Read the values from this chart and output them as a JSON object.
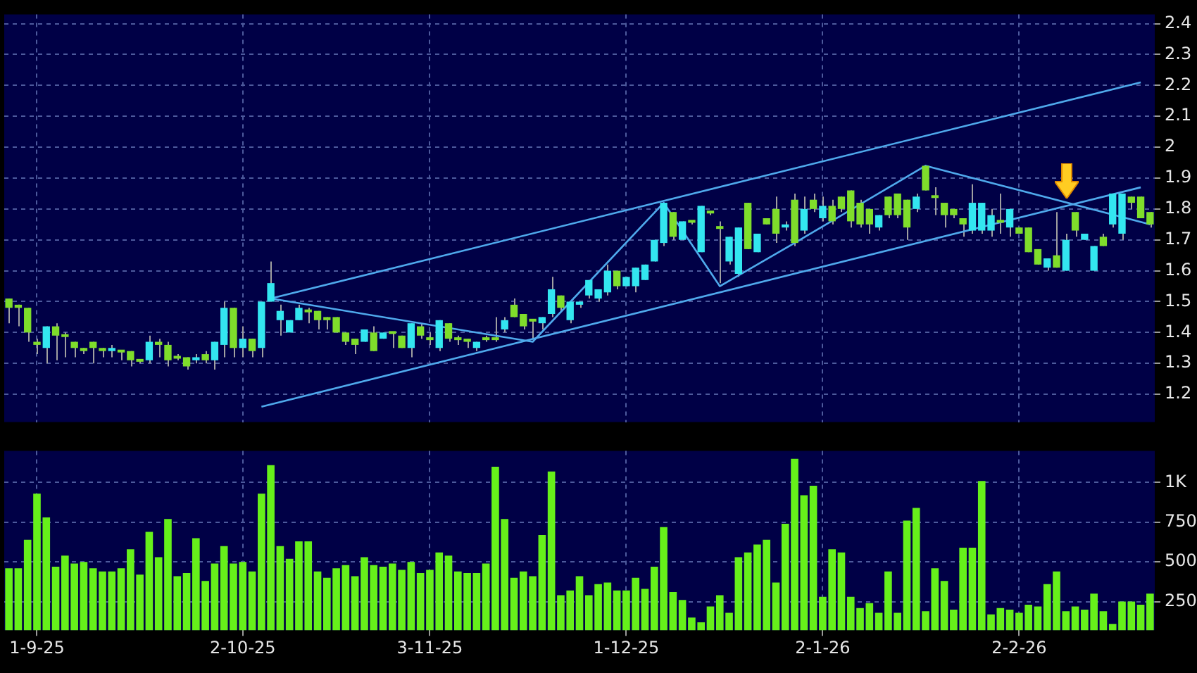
{
  "chart_data": [
    {
      "type": "candlestick",
      "categories": [
        null,
        null,
        null,
        null,
        null,
        null,
        null,
        null,
        null,
        null,
        null,
        null,
        null,
        null,
        null,
        null,
        null,
        null,
        null,
        null,
        null,
        null,
        null,
        null,
        null,
        null,
        null,
        null,
        null,
        null,
        null,
        null,
        null,
        null,
        null,
        null,
        null,
        null,
        null,
        null,
        null,
        null,
        null,
        null,
        null,
        null,
        null,
        null,
        null,
        null,
        null,
        null,
        null,
        null,
        null,
        null,
        null,
        null,
        null,
        null,
        null,
        null,
        null,
        null,
        null,
        null,
        null,
        null,
        null,
        null,
        null,
        null,
        null,
        null,
        null,
        null,
        null,
        null,
        null,
        null,
        null,
        null,
        null,
        null,
        null,
        null,
        null,
        null,
        null,
        null,
        null,
        null,
        null,
        null,
        null,
        null,
        null,
        null,
        null,
        null,
        null,
        null,
        null,
        null,
        null,
        null,
        null,
        null,
        null,
        null,
        null,
        null,
        null,
        null,
        null,
        null,
        null,
        null,
        null,
        null,
        null,
        null,
        null
      ],
      "ohlc": [
        [
          1.51,
          1.51,
          1.43,
          1.48
        ],
        [
          1.49,
          1.49,
          1.42,
          1.48
        ],
        [
          1.48,
          1.48,
          1.37,
          1.4
        ],
        [
          1.37,
          1.38,
          1.33,
          1.36
        ],
        [
          1.35,
          1.42,
          1.3,
          1.42
        ],
        [
          1.42,
          1.43,
          1.31,
          1.39
        ],
        [
          1.39,
          1.4,
          1.32,
          1.39
        ],
        [
          1.37,
          1.37,
          1.32,
          1.35
        ],
        [
          1.35,
          1.35,
          1.33,
          1.34
        ],
        [
          1.37,
          1.37,
          1.3,
          1.35
        ],
        [
          1.35,
          1.35,
          1.32,
          1.34
        ],
        [
          1.34,
          1.36,
          1.32,
          1.35
        ],
        [
          1.34,
          1.34,
          1.31,
          1.34
        ],
        [
          1.34,
          1.34,
          1.29,
          1.31
        ],
        [
          1.31,
          1.31,
          1.3,
          1.31
        ],
        [
          1.31,
          1.39,
          1.3,
          1.37
        ],
        [
          1.37,
          1.38,
          1.32,
          1.36
        ],
        [
          1.36,
          1.37,
          1.29,
          1.31
        ],
        [
          1.32,
          1.33,
          1.31,
          1.32
        ],
        [
          1.32,
          1.32,
          1.28,
          1.29
        ],
        [
          1.31,
          1.33,
          1.3,
          1.32
        ],
        [
          1.33,
          1.34,
          1.3,
          1.31
        ],
        [
          1.31,
          1.37,
          1.28,
          1.37
        ],
        [
          1.36,
          1.5,
          1.32,
          1.48
        ],
        [
          1.48,
          1.48,
          1.32,
          1.35
        ],
        [
          1.35,
          1.42,
          1.32,
          1.38
        ],
        [
          1.38,
          1.38,
          1.32,
          1.34
        ],
        [
          1.35,
          1.5,
          1.32,
          1.5
        ],
        [
          1.5,
          1.63,
          1.5,
          1.56
        ],
        [
          1.44,
          1.49,
          1.39,
          1.47
        ],
        [
          1.4,
          1.44,
          1.4,
          1.44
        ],
        [
          1.44,
          1.49,
          1.44,
          1.48
        ],
        [
          1.47,
          1.48,
          1.43,
          1.47
        ],
        [
          1.47,
          1.47,
          1.41,
          1.44
        ],
        [
          1.45,
          1.45,
          1.41,
          1.44
        ],
        [
          1.45,
          1.45,
          1.4,
          1.4
        ],
        [
          1.4,
          1.4,
          1.36,
          1.37
        ],
        [
          1.38,
          1.38,
          1.33,
          1.36
        ],
        [
          1.37,
          1.41,
          1.37,
          1.41
        ],
        [
          1.4,
          1.42,
          1.34,
          1.34
        ],
        [
          1.38,
          1.4,
          1.38,
          1.4
        ],
        [
          1.4,
          1.4,
          1.35,
          1.4
        ],
        [
          1.39,
          1.39,
          1.35,
          1.35
        ],
        [
          1.35,
          1.43,
          1.32,
          1.43
        ],
        [
          1.42,
          1.43,
          1.38,
          1.39
        ],
        [
          1.38,
          1.4,
          1.36,
          1.38
        ],
        [
          1.35,
          1.44,
          1.34,
          1.44
        ],
        [
          1.43,
          1.43,
          1.37,
          1.38
        ],
        [
          1.38,
          1.39,
          1.36,
          1.38
        ],
        [
          1.38,
          1.38,
          1.35,
          1.37
        ],
        [
          1.35,
          1.37,
          1.34,
          1.37
        ],
        [
          1.38,
          1.39,
          1.37,
          1.38
        ],
        [
          1.38,
          1.45,
          1.37,
          1.38
        ],
        [
          1.41,
          1.45,
          1.4,
          1.44
        ],
        [
          1.49,
          1.51,
          1.45,
          1.45
        ],
        [
          1.46,
          1.46,
          1.41,
          1.42
        ],
        [
          1.44,
          1.44,
          1.38,
          1.44
        ],
        [
          1.43,
          1.45,
          1.41,
          1.45
        ],
        [
          1.46,
          1.58,
          1.45,
          1.54
        ],
        [
          1.52,
          1.52,
          1.47,
          1.48
        ],
        [
          1.44,
          1.5,
          1.43,
          1.5
        ],
        [
          1.49,
          1.5,
          1.48,
          1.5
        ],
        [
          1.52,
          1.57,
          1.51,
          1.57
        ],
        [
          1.51,
          1.54,
          1.5,
          1.54
        ],
        [
          1.53,
          1.62,
          1.52,
          1.6
        ],
        [
          1.6,
          1.6,
          1.54,
          1.55
        ],
        [
          1.55,
          1.58,
          1.55,
          1.58
        ],
        [
          1.55,
          1.61,
          1.53,
          1.61
        ],
        [
          1.57,
          1.62,
          1.57,
          1.62
        ],
        [
          1.63,
          1.7,
          1.63,
          1.7
        ],
        [
          1.69,
          1.82,
          1.68,
          1.82
        ],
        [
          1.79,
          1.79,
          1.7,
          1.71
        ],
        [
          1.7,
          1.76,
          1.7,
          1.76
        ],
        [
          1.76,
          1.76,
          1.75,
          1.76
        ],
        [
          1.66,
          1.81,
          1.66,
          1.81
        ],
        [
          1.79,
          1.79,
          1.78,
          1.79
        ],
        [
          1.74,
          1.76,
          1.56,
          1.74
        ],
        [
          1.63,
          1.71,
          1.62,
          1.71
        ],
        [
          1.59,
          1.74,
          1.58,
          1.74
        ],
        [
          1.82,
          1.82,
          1.67,
          1.67
        ],
        [
          1.66,
          1.72,
          1.66,
          1.72
        ],
        [
          1.77,
          1.77,
          1.75,
          1.75
        ],
        [
          1.8,
          1.84,
          1.69,
          1.72
        ],
        [
          1.74,
          1.76,
          1.73,
          1.75
        ],
        [
          1.83,
          1.85,
          1.68,
          1.69
        ],
        [
          1.73,
          1.84,
          1.72,
          1.8
        ],
        [
          1.83,
          1.85,
          1.79,
          1.8
        ],
        [
          1.77,
          1.84,
          1.76,
          1.81
        ],
        [
          1.81,
          1.83,
          1.75,
          1.76
        ],
        [
          1.84,
          1.84,
          1.79,
          1.8
        ],
        [
          1.86,
          1.86,
          1.74,
          1.76
        ],
        [
          1.82,
          1.83,
          1.74,
          1.75
        ],
        [
          1.8,
          1.8,
          1.72,
          1.75
        ],
        [
          1.74,
          1.78,
          1.73,
          1.78
        ],
        [
          1.84,
          1.84,
          1.77,
          1.78
        ],
        [
          1.85,
          1.85,
          1.77,
          1.78
        ],
        [
          1.83,
          1.83,
          1.7,
          1.74
        ],
        [
          1.8,
          1.85,
          1.79,
          1.84
        ],
        [
          1.94,
          1.94,
          1.86,
          1.86
        ],
        [
          1.84,
          1.87,
          1.78,
          1.84
        ],
        [
          1.82,
          1.82,
          1.74,
          1.78
        ],
        [
          1.8,
          1.8,
          1.77,
          1.78
        ],
        [
          1.77,
          1.77,
          1.71,
          1.75
        ],
        [
          1.73,
          1.88,
          1.72,
          1.82
        ],
        [
          1.73,
          1.82,
          1.72,
          1.82
        ],
        [
          1.73,
          1.8,
          1.71,
          1.78
        ],
        [
          1.76,
          1.85,
          1.72,
          1.76
        ],
        [
          1.74,
          1.8,
          1.71,
          1.8
        ],
        [
          1.74,
          1.74,
          1.72,
          1.72
        ],
        [
          1.74,
          1.74,
          1.66,
          1.66
        ],
        [
          1.67,
          1.67,
          1.62,
          1.62
        ],
        [
          1.61,
          1.64,
          1.6,
          1.64
        ],
        [
          1.65,
          1.79,
          1.61,
          1.61
        ],
        [
          1.6,
          1.72,
          1.6,
          1.7
        ],
        [
          1.79,
          1.79,
          1.71,
          1.73
        ],
        [
          1.7,
          1.72,
          1.7,
          1.72
        ],
        [
          1.6,
          1.68,
          1.6,
          1.68
        ],
        [
          1.71,
          1.72,
          1.68,
          1.68
        ],
        [
          1.75,
          1.85,
          1.74,
          1.85
        ],
        [
          1.72,
          1.85,
          1.7,
          1.85
        ],
        [
          1.84,
          1.84,
          1.8,
          1.82
        ],
        [
          1.84,
          1.84,
          1.77,
          1.77
        ],
        [
          1.79,
          1.79,
          1.74,
          1.75
        ]
      ],
      "colors": [
        "#7fdd2b",
        "#7fdd2b",
        "#7fdd2b",
        "#7fdd2b",
        "#33e6f0",
        "#7fdd2b",
        "#7fdd2b",
        "#7fdd2b",
        "#7fdd2b",
        "#7fdd2b",
        "#7fdd2b",
        "#33e6f0",
        "#7fdd2b",
        "#7fdd2b",
        "#7fdd2b",
        "#33e6f0",
        "#7fdd2b",
        "#7fdd2b",
        "#7fdd2b",
        "#7fdd2b",
        "#33e6f0",
        "#7fdd2b",
        "#33e6f0",
        "#33e6f0",
        "#7fdd2b",
        "#33e6f0",
        "#7fdd2b",
        "#33e6f0",
        "#33e6f0",
        "#33e6f0",
        "#33e6f0",
        "#33e6f0",
        "#7fdd2b",
        "#7fdd2b",
        "#7fdd2b",
        "#7fdd2b",
        "#7fdd2b",
        "#7fdd2b",
        "#33e6f0",
        "#7fdd2b",
        "#33e6f0",
        "#7fdd2b",
        "#7fdd2b",
        "#33e6f0",
        "#7fdd2b",
        "#7fdd2b",
        "#33e6f0",
        "#7fdd2b",
        "#7fdd2b",
        "#7fdd2b",
        "#33e6f0",
        "#7fdd2b",
        "#7fdd2b",
        "#33e6f0",
        "#7fdd2b",
        "#7fdd2b",
        "#7fdd2b",
        "#33e6f0",
        "#33e6f0",
        "#7fdd2b",
        "#33e6f0",
        "#33e6f0",
        "#33e6f0",
        "#33e6f0",
        "#33e6f0",
        "#7fdd2b",
        "#33e6f0",
        "#33e6f0",
        "#33e6f0",
        "#33e6f0",
        "#33e6f0",
        "#7fdd2b",
        "#33e6f0",
        "#7fdd2b",
        "#33e6f0",
        "#7fdd2b",
        "#7fdd2b",
        "#33e6f0",
        "#33e6f0",
        "#7fdd2b",
        "#33e6f0",
        "#7fdd2b",
        "#7fdd2b",
        "#33e6f0",
        "#7fdd2b",
        "#33e6f0",
        "#7fdd2b",
        "#33e6f0",
        "#7fdd2b",
        "#7fdd2b",
        "#7fdd2b",
        "#7fdd2b",
        "#7fdd2b",
        "#33e6f0",
        "#7fdd2b",
        "#7fdd2b",
        "#7fdd2b",
        "#33e6f0",
        "#7fdd2b",
        "#7fdd2b",
        "#7fdd2b",
        "#7fdd2b",
        "#7fdd2b",
        "#33e6f0",
        "#33e6f0",
        "#33e6f0",
        "#7fdd2b",
        "#33e6f0",
        "#7fdd2b",
        "#7fdd2b",
        "#7fdd2b",
        "#33e6f0",
        "#7fdd2b",
        "#33e6f0",
        "#7fdd2b",
        "#33e6f0",
        "#33e6f0",
        "#7fdd2b",
        "#33e6f0",
        "#33e6f0",
        "#7fdd2b",
        "#7fdd2b",
        "#7fdd2b"
      ],
      "series": [
        {
          "type": "line",
          "color": "#4fa9ec",
          "values": [
            null,
            null,
            null,
            null,
            null,
            null,
            null,
            null,
            null,
            null,
            null,
            null,
            null,
            null,
            null,
            null,
            null,
            null,
            null,
            null,
            null,
            null,
            null,
            null,
            null,
            null,
            null,
            null,
            1.51,
            null,
            null,
            null,
            null,
            null,
            null,
            null,
            null,
            null,
            null,
            null,
            null,
            null,
            null,
            null,
            null,
            null,
            null,
            null,
            null,
            null,
            null,
            null,
            null,
            null,
            null,
            null,
            null,
            null,
            null,
            null,
            null,
            null,
            null,
            null,
            null,
            null,
            null,
            null,
            null,
            null,
            null,
            null,
            null,
            null,
            null,
            null,
            null,
            null,
            null,
            null,
            null,
            null,
            null,
            null,
            null,
            null,
            null,
            null,
            null,
            null,
            null,
            null,
            null,
            null,
            null,
            null,
            null,
            null,
            null,
            null,
            null,
            null,
            null,
            null,
            null,
            null,
            null,
            null,
            null,
            null,
            null,
            null,
            null,
            null,
            null,
            null,
            null,
            null,
            null,
            null,
            null,
            2.21,
            null
          ]
        },
        {
          "type": "line",
          "color": "#4fa9ec",
          "values": [
            null,
            null,
            null,
            null,
            null,
            null,
            null,
            null,
            null,
            null,
            null,
            null,
            null,
            null,
            null,
            null,
            null,
            null,
            null,
            null,
            null,
            null,
            null,
            null,
            null,
            null,
            null,
            1.16,
            null,
            null,
            null,
            null,
            null,
            null,
            null,
            null,
            null,
            null,
            null,
            null,
            null,
            null,
            null,
            null,
            null,
            null,
            null,
            null,
            null,
            null,
            null,
            null,
            null,
            null,
            null,
            null,
            null,
            null,
            null,
            null,
            null,
            null,
            null,
            null,
            null,
            null,
            null,
            null,
            null,
            null,
            null,
            null,
            null,
            null,
            null,
            null,
            null,
            null,
            null,
            null,
            null,
            null,
            null,
            null,
            null,
            null,
            null,
            null,
            null,
            null,
            null,
            null,
            null,
            null,
            null,
            null,
            null,
            null,
            null,
            null,
            null,
            null,
            null,
            null,
            null,
            null,
            null,
            null,
            null,
            null,
            null,
            null,
            null,
            null,
            null,
            null,
            null,
            null,
            null,
            null,
            null,
            1.87,
            null
          ]
        },
        {
          "type": "line",
          "color": "#4fa9ec",
          "values": [
            null,
            null,
            null,
            null,
            null,
            null,
            null,
            null,
            null,
            null,
            null,
            null,
            null,
            null,
            null,
            null,
            null,
            null,
            null,
            null,
            null,
            null,
            null,
            null,
            null,
            null,
            null,
            null,
            1.51,
            null,
            null,
            null,
            null,
            null,
            null,
            null,
            null,
            null,
            null,
            null,
            null,
            null,
            null,
            null,
            null,
            null,
            null,
            null,
            null,
            null,
            null,
            null,
            null,
            null,
            null,
            null,
            1.37,
            null,
            null,
            null,
            null,
            null,
            null,
            null,
            null,
            null,
            null,
            null,
            null,
            null,
            1.82,
            null,
            null,
            null,
            null,
            null,
            1.55,
            null,
            null,
            null,
            null,
            null,
            null,
            null,
            1.69,
            null,
            null,
            null,
            null,
            null,
            null,
            null,
            null,
            null,
            null,
            null,
            null,
            null,
            1.94,
            null,
            null,
            null,
            null,
            null,
            null,
            null,
            null,
            null,
            null,
            null,
            null,
            null,
            null,
            null,
            null,
            null,
            null,
            null,
            null,
            null,
            null,
            null,
            1.75
          ]
        }
      ],
      "ylim": [
        1.11,
        2.43
      ],
      "yticks": [
        1.2,
        1.3,
        1.4,
        1.5,
        1.6,
        1.7,
        1.8,
        1.9,
        2,
        2.1,
        2.2,
        2.3,
        2.4
      ],
      "grid": true,
      "tick_labels": "y"
    },
    {
      "type": "bar",
      "categories": [
        null,
        null,
        null,
        "1-9-25",
        null,
        null,
        null,
        null,
        null,
        null,
        null,
        null,
        null,
        null,
        null,
        null,
        null,
        null,
        null,
        null,
        null,
        null,
        null,
        null,
        null,
        "2-10-25",
        null,
        null,
        null,
        null,
        null,
        null,
        null,
        null,
        null,
        null,
        null,
        null,
        null,
        null,
        null,
        null,
        null,
        null,
        null,
        "3-11-25",
        null,
        null,
        null,
        null,
        null,
        null,
        null,
        null,
        null,
        null,
        null,
        null,
        null,
        null,
        null,
        null,
        null,
        null,
        null,
        null,
        "1-12-25",
        null,
        null,
        null,
        null,
        null,
        null,
        null,
        null,
        null,
        null,
        null,
        null,
        null,
        null,
        null,
        null,
        null,
        null,
        null,
        null,
        "2-1-26",
        null,
        null,
        null,
        null,
        null,
        null,
        null,
        null,
        null,
        null,
        null,
        null,
        null,
        null,
        null,
        null,
        null,
        null,
        null,
        null,
        "2-2-26",
        null,
        null,
        null,
        null,
        null,
        null,
        null,
        null,
        null,
        null,
        null,
        null,
        null,
        null
      ],
      "values": [
        460,
        460,
        640,
        930,
        780,
        470,
        540,
        490,
        500,
        460,
        440,
        440,
        460,
        580,
        420,
        690,
        530,
        770,
        410,
        430,
        650,
        380,
        490,
        600,
        490,
        500,
        440,
        930,
        1110,
        600,
        520,
        630,
        630,
        440,
        400,
        460,
        480,
        410,
        530,
        480,
        470,
        490,
        450,
        500,
        430,
        450,
        560,
        540,
        440,
        430,
        430,
        490,
        1100,
        770,
        400,
        440,
        410,
        670,
        1070,
        290,
        320,
        410,
        290,
        360,
        370,
        320,
        320,
        400,
        330,
        470,
        720,
        310,
        260,
        150,
        120,
        220,
        290,
        180,
        530,
        560,
        610,
        640,
        370,
        740,
        1150,
        920,
        980,
        280,
        580,
        560,
        280,
        210,
        240,
        180,
        440,
        180,
        760,
        840,
        190,
        460,
        380,
        200,
        590,
        590,
        1010,
        170,
        210,
        200,
        180,
        230,
        220,
        360,
        440,
        190,
        220,
        200,
        300,
        190,
        110,
        250,
        250,
        230,
        300
      ],
      "color": "#66f01a",
      "ylim": [
        70,
        1200
      ],
      "yticks": [
        250,
        500,
        750,
        {
          "value": 1000,
          "label": "1K"
        }
      ],
      "grid": true
    }
  ]
}
